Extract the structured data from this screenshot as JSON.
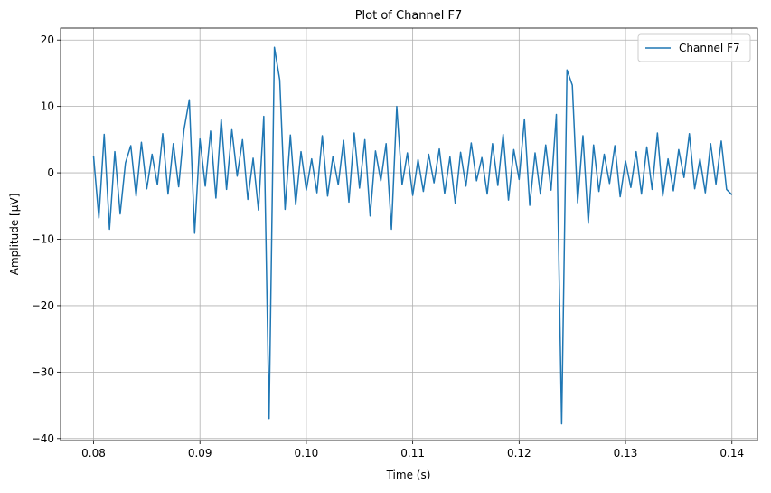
{
  "chart_data": {
    "type": "line",
    "title": "Plot of Channel F7",
    "x_label": "Time (s)",
    "y_label": "Amplitude [µV]",
    "x": [
      0.08,
      0.0805,
      0.081,
      0.0815,
      0.082,
      0.0825,
      0.083,
      0.0835,
      0.084,
      0.0845,
      0.085,
      0.0855,
      0.086,
      0.0865,
      0.087,
      0.0875,
      0.088,
      0.0885,
      0.089,
      0.0895,
      0.09,
      0.0905,
      0.091,
      0.0915,
      0.092,
      0.0925,
      0.093,
      0.0935,
      0.094,
      0.0945,
      0.095,
      0.0955,
      0.096,
      0.0965,
      0.097,
      0.0975,
      0.098,
      0.0985,
      0.099,
      0.0995,
      0.1,
      0.1005,
      0.101,
      0.1015,
      0.102,
      0.1025,
      0.103,
      0.1035,
      0.104,
      0.1045,
      0.105,
      0.1055,
      0.106,
      0.1065,
      0.107,
      0.1075,
      0.108,
      0.1085,
      0.109,
      0.1095,
      0.11,
      0.1105,
      0.111,
      0.1115,
      0.112,
      0.1125,
      0.113,
      0.1135,
      0.114,
      0.1145,
      0.115,
      0.1155,
      0.116,
      0.1165,
      0.117,
      0.1175,
      0.118,
      0.1185,
      0.119,
      0.1195,
      0.12,
      0.1205,
      0.121,
      0.1215,
      0.122,
      0.1225,
      0.123,
      0.1235,
      0.124,
      0.1245,
      0.125,
      0.1255,
      0.126,
      0.1265,
      0.127,
      0.1275,
      0.128,
      0.1285,
      0.129,
      0.1295,
      0.13,
      0.1305,
      0.131,
      0.1315,
      0.132,
      0.1325,
      0.133,
      0.1335,
      0.134,
      0.1345,
      0.135,
      0.1355,
      0.136,
      0.1365,
      0.137,
      0.1375,
      0.138,
      0.1385,
      0.139,
      0.1395,
      0.14
    ],
    "series": [
      {
        "name": "Channel F7",
        "color": "#1f77b4",
        "values": [
          2.5,
          -6.8,
          5.8,
          -8.5,
          3.2,
          -6.2,
          1.5,
          4.1,
          -3.5,
          4.6,
          -2.4,
          2.8,
          -1.8,
          5.9,
          -3.2,
          4.4,
          -2.1,
          6.5,
          11.0,
          -9.1,
          5.1,
          -2.0,
          6.3,
          -3.8,
          8.1,
          -2.5,
          6.5,
          -0.5,
          5.0,
          -4.0,
          2.2,
          -5.6,
          8.5,
          -37.0,
          18.9,
          14.0,
          -5.5,
          5.7,
          -4.8,
          3.2,
          -2.6,
          2.1,
          -3.0,
          5.6,
          -3.5,
          2.5,
          -1.8,
          4.9,
          -4.4,
          6.0,
          -2.3,
          5.0,
          -6.5,
          3.3,
          -1.2,
          4.4,
          -8.5,
          10.0,
          -1.8,
          3.0,
          -3.4,
          2.0,
          -2.8,
          2.8,
          -1.5,
          3.6,
          -3.1,
          2.4,
          -4.6,
          3.1,
          -2.0,
          4.5,
          -1.2,
          2.3,
          -3.2,
          4.4,
          -1.9,
          5.8,
          -4.1,
          3.5,
          -1.0,
          8.1,
          -4.9,
          3.0,
          -3.2,
          4.2,
          -2.6,
          8.8,
          -37.8,
          15.5,
          13.2,
          -4.5,
          5.6,
          -7.6,
          4.2,
          -2.8,
          2.8,
          -1.6,
          4.1,
          -3.6,
          1.8,
          -2.2,
          3.2,
          -3.2,
          3.9,
          -2.5,
          6.0,
          -3.5,
          2.1,
          -2.7,
          3.5,
          -0.7,
          5.9,
          -2.4,
          2.1,
          -3.0,
          4.4,
          -1.7,
          4.8,
          -2.5,
          -3.3
        ]
      }
    ],
    "xlim": [
      0.0769,
      0.1424
    ],
    "xticks": [
      0.08,
      0.09,
      {
        "value": 0.1,
        "label": "0.10"
      },
      0.11,
      0.12,
      0.13,
      0.14
    ],
    "ylim": [
      -40.3,
      21.8
    ],
    "yticks": [
      {
        "value": -40,
        "label": "−40"
      },
      {
        "value": -30,
        "label": "−30"
      },
      {
        "value": -20,
        "label": "−20"
      },
      {
        "value": -10,
        "label": "−10"
      },
      0,
      10,
      20
    ],
    "grid": true,
    "legend": "upper right"
  }
}
